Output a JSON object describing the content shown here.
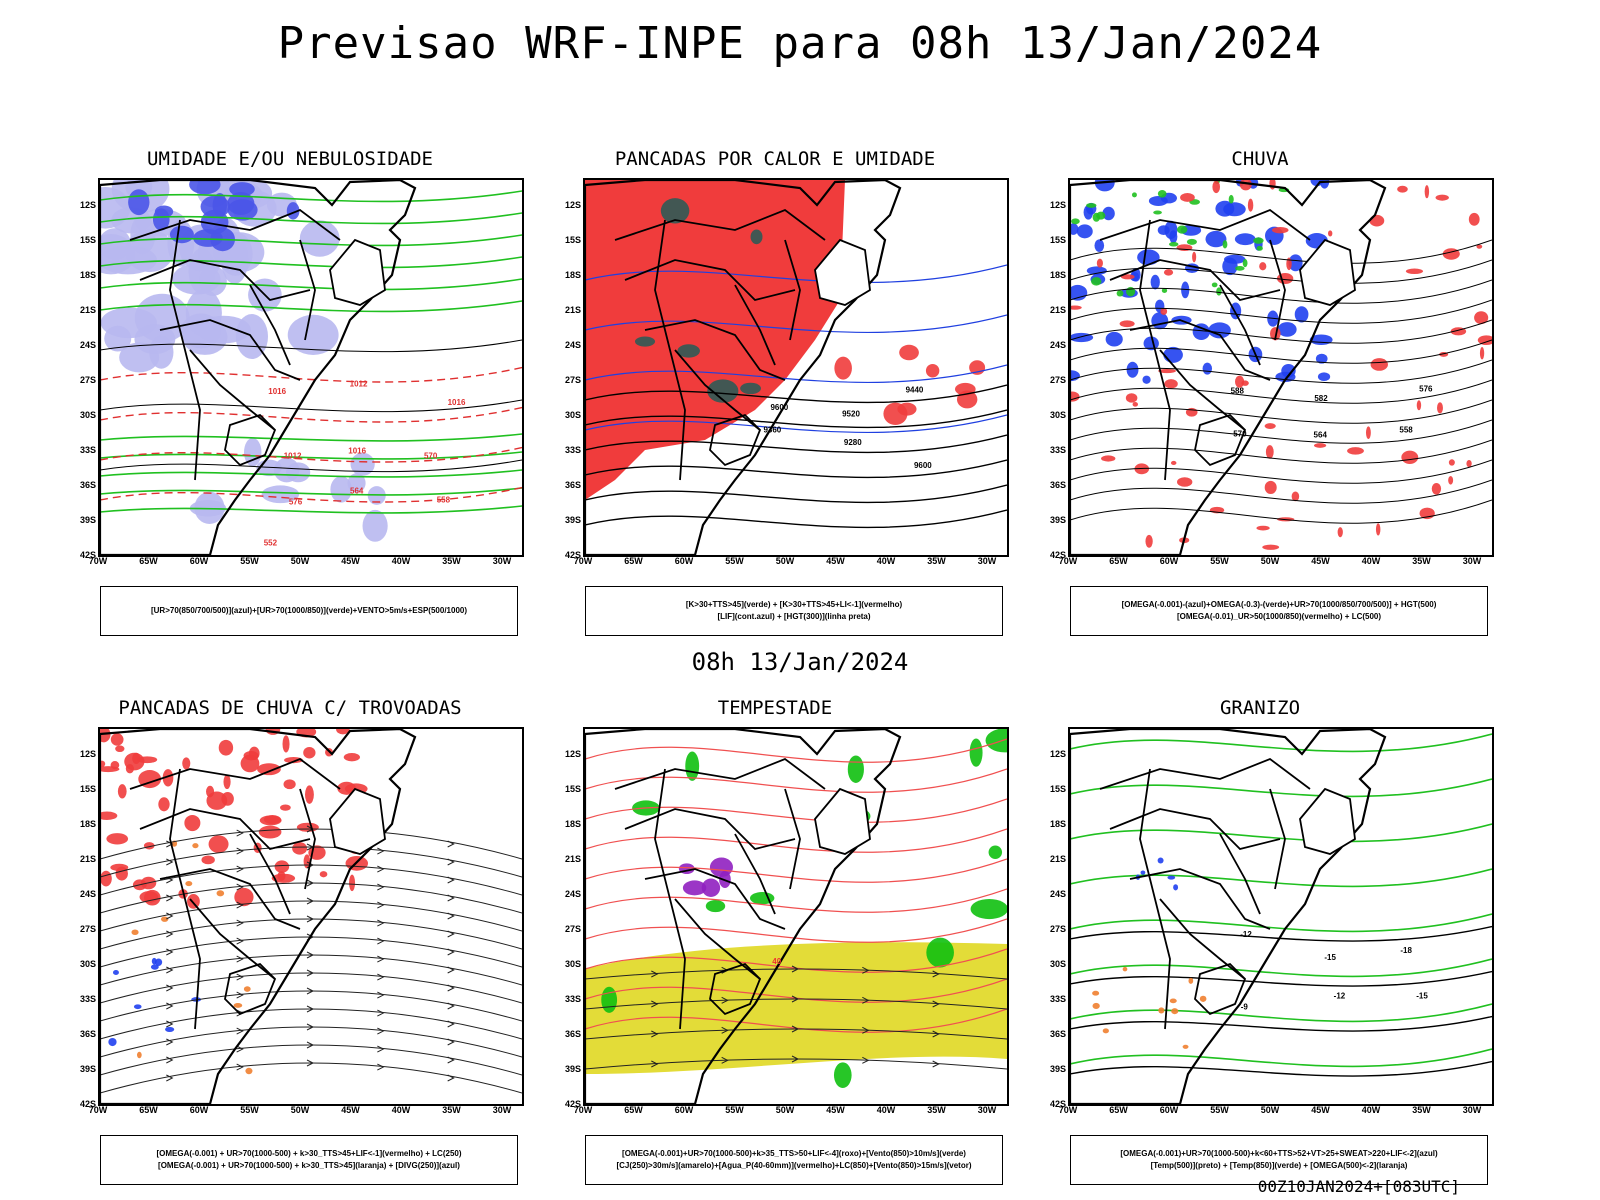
{
  "title": "Previsao WRF-INPE  para 08h 13/Jan/2024",
  "subtitle": "08h 13/Jan/2024",
  "footer": "00Z10JAN2024+[083UTC]",
  "lat_labels": [
    "12S",
    "15S",
    "18S",
    "21S",
    "24S",
    "27S",
    "30S",
    "33S",
    "36S",
    "39S",
    "42S"
  ],
  "lon_labels": [
    "70W",
    "65W",
    "60W",
    "55W",
    "50W",
    "45W",
    "40W",
    "35W",
    "30W"
  ],
  "panels": [
    {
      "title": "UMIDADE E/OU NEBULOSIDADE",
      "legend": [
        "[UR>70(850/700/500)](azul)+[UR>70(1000/850)](verde)+VENTO>5m/s+ESP(500/1000)"
      ],
      "labels": [
        "1016",
        "1012",
        "1016",
        "1012",
        "1016",
        "570",
        "576",
        "564",
        "558",
        "552"
      ]
    },
    {
      "title": "PANCADAS POR CALOR E UMIDADE",
      "legend": [
        "[K>30+TTS>45](verde) + [K>30+TTS>45+LI<-1](vermelho)",
        "[LIF](cont.azul) + [HGT(300)](linha preta)"
      ],
      "labels": [
        "9600",
        "9520",
        "9440",
        "9360",
        "9280",
        "9600"
      ]
    },
    {
      "title": "CHUVA",
      "legend": [
        "[OMEGA(-0.001)-(azul)+OMEGA(-0.3)-(verde)+UR>70(1000/850/700/500)] + HGT(500)",
        "[OMEGA(-0.01)_UR>50(1000/850)(vermelho) + LC(500)"
      ],
      "labels": [
        "588",
        "582",
        "576",
        "570",
        "564",
        "558"
      ]
    },
    {
      "title": "PANCADAS DE CHUVA C/ TROVOADAS",
      "legend": [
        "[OMEGA(-0.001) + UR>70(1000-500) + k>30_TTS>45+LIF<-1](vermelho) + LC(250)",
        "[OMEGA(-0.001) + UR>70(1000-500) + k>30_TTS>45](laranja) + [DIVG(250)](azul)"
      ],
      "labels": []
    },
    {
      "title": "TEMPESTADE",
      "legend": [
        "[OMEGA(-0.001)+UR>70(1000-500)+k>35_TTS>50+LIF<-4](roxo)+[Vento(850)>10m/s](verde)",
        "[CJ(250)>30m/s](amarelo)+[Agua_P(40-60mm)](vermelho)+LC(850)+[Vento(850)>15m/s](vetor)"
      ],
      "labels": [
        "40"
      ]
    },
    {
      "title": "GRANIZO",
      "legend": [
        "[OMEGA(-0.001)+UR>70(1000-500)+k<60+TTS>52+VT>25+SWEAT>220+LIF<-2](azul)",
        "[Temp(500)](preto) + [Temp(850)](verde) + [OMEGA(500)<-2](laranja)"
      ],
      "labels": [
        "-12",
        "-15",
        "-18",
        "-9",
        "-12",
        "-15"
      ]
    }
  ]
}
